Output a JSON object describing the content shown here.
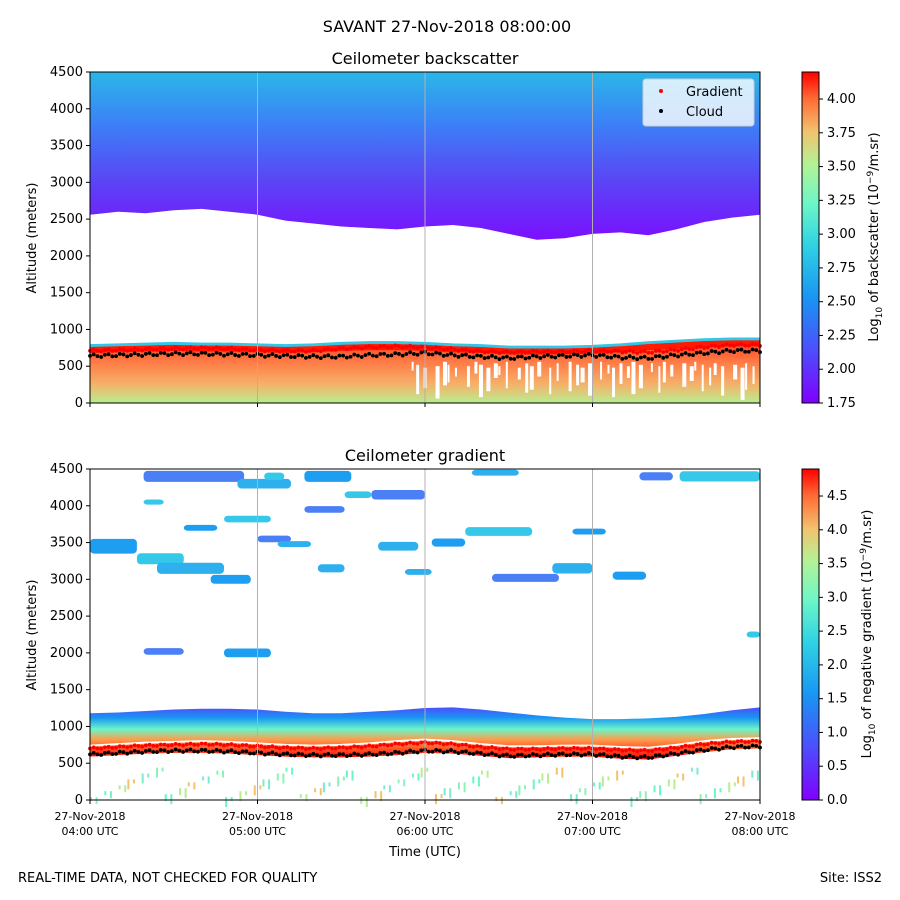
{
  "figure": {
    "suptitle": "SAVANT 27-Nov-2018 08:00:00",
    "footer_left": "REAL-TIME DATA, NOT CHECKED FOR QUALITY",
    "footer_right": "Site: ISS2",
    "xlabel": "Time (UTC)"
  },
  "chart_data": [
    {
      "type": "heatmap",
      "title": "Ceilometer backscatter",
      "xlabel": "",
      "ylabel": "Altitude (meters)",
      "ylim": [
        0,
        4500
      ],
      "yticks": [
        "0",
        "500",
        "1000",
        "1500",
        "2000",
        "2500",
        "3000",
        "3500",
        "4000",
        "4500"
      ],
      "xlim": [
        "27-Nov-2018 04:00",
        "27-Nov-2018 08:00"
      ],
      "x_grid": true,
      "colorbar": {
        "label_prefix": "Log",
        "label_sub": "10",
        "label_mid": " of backscatter (10",
        "label_sup": "−9",
        "label_suffix": "/m.sr)",
        "range": [
          1.75,
          4.2
        ],
        "ticks": [
          "1.75",
          "2.00",
          "2.25",
          "2.50",
          "2.75",
          "3.00",
          "3.25",
          "3.50",
          "3.75",
          "4.00"
        ],
        "colormap": "rainbow"
      },
      "legend": {
        "placement": "upper right",
        "entries": [
          {
            "label": "Gradient",
            "color": "#ff0000"
          },
          {
            "label": "Cloud",
            "color": "#000000"
          }
        ]
      },
      "upper_layer_bottom_m": [
        2560,
        2600,
        2580,
        2620,
        2640,
        2600,
        2560,
        2480,
        2440,
        2400,
        2380,
        2360,
        2400,
        2420,
        2380,
        2300,
        2220,
        2240,
        2300,
        2320,
        2280,
        2360,
        2460,
        2520,
        2560
      ],
      "aerosol_top_m": [
        780,
        790,
        800,
        810,
        800,
        800,
        790,
        780,
        790,
        810,
        820,
        820,
        810,
        790,
        780,
        760,
        760,
        760,
        770,
        790,
        820,
        840,
        860,
        870,
        870
      ],
      "cloud_m": [
        640,
        650,
        660,
        670,
        670,
        660,
        650,
        640,
        630,
        630,
        650,
        660,
        680,
        650,
        630,
        610,
        630,
        640,
        650,
        620,
        610,
        650,
        680,
        710,
        710
      ],
      "gradient_m": [
        710,
        720,
        730,
        740,
        750,
        740,
        720,
        710,
        710,
        740,
        760,
        770,
        760,
        730,
        700,
        690,
        700,
        700,
        710,
        700,
        690,
        720,
        760,
        790,
        790
      ]
    },
    {
      "type": "heatmap",
      "title": "Ceilometer gradient",
      "xlabel": "Time (UTC)",
      "ylabel": "Altitude (meters)",
      "ylim": [
        0,
        4500
      ],
      "yticks": [
        "0",
        "500",
        "1000",
        "1500",
        "2000",
        "2500",
        "3000",
        "3500",
        "4000",
        "4500"
      ],
      "xticks": [
        {
          "line1": "27-Nov-2018",
          "line2": "04:00 UTC"
        },
        {
          "line1": "27-Nov-2018",
          "line2": "05:00 UTC"
        },
        {
          "line1": "27-Nov-2018",
          "line2": "06:00 UTC"
        },
        {
          "line1": "27-Nov-2018",
          "line2": "07:00 UTC"
        },
        {
          "line1": "27-Nov-2018",
          "line2": "08:00 UTC"
        }
      ],
      "xlim": [
        "27-Nov-2018 04:00",
        "27-Nov-2018 08:00"
      ],
      "x_grid": true,
      "colorbar": {
        "label_prefix": "Log",
        "label_sub": "10",
        "label_mid": " of negative gradient (10",
        "label_sup": "−9",
        "label_suffix": "/m.sr)",
        "range": [
          0.0,
          4.9
        ],
        "ticks": [
          "0.0",
          "0.5",
          "1.0",
          "1.5",
          "2.0",
          "2.5",
          "3.0",
          "3.5",
          "4.0",
          "4.5"
        ],
        "colormap": "rainbow"
      },
      "layer_top_m": [
        1180,
        1190,
        1210,
        1230,
        1240,
        1240,
        1230,
        1200,
        1180,
        1180,
        1200,
        1220,
        1250,
        1260,
        1230,
        1190,
        1150,
        1120,
        1100,
        1100,
        1110,
        1130,
        1170,
        1220,
        1260
      ],
      "cloud_m": [
        620,
        640,
        660,
        670,
        670,
        660,
        640,
        620,
        610,
        610,
        620,
        640,
        670,
        660,
        630,
        600,
        610,
        620,
        620,
        590,
        580,
        630,
        680,
        720,
        730
      ],
      "gradient_m": [
        700,
        720,
        740,
        750,
        760,
        750,
        730,
        710,
        700,
        710,
        730,
        760,
        780,
        760,
        720,
        690,
        690,
        700,
        700,
        680,
        670,
        710,
        760,
        790,
        800
      ]
    }
  ]
}
